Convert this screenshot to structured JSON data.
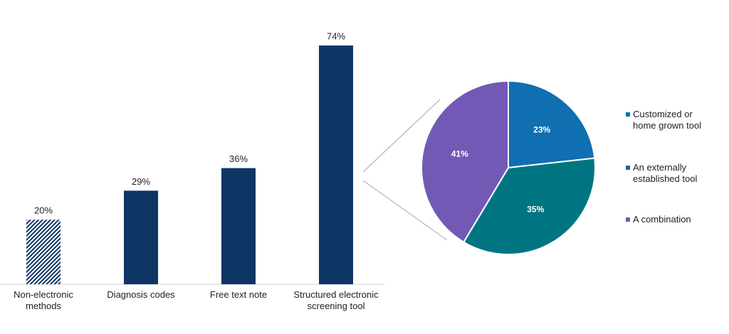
{
  "chart_data": [
    {
      "type": "bar",
      "categories": [
        "Non-electronic methods",
        "Diagnosis codes",
        "Free text note",
        "Structured electronic screening tool"
      ],
      "values": [
        20,
        29,
        36,
        74
      ],
      "value_labels": [
        "20%",
        "29%",
        "36%",
        "74%"
      ],
      "colors": [
        "#0f3564",
        "#0f3564",
        "#0f3564",
        "#0f3564"
      ],
      "hatched": [
        true,
        false,
        false,
        false
      ]
    },
    {
      "type": "pie",
      "labels": [
        "Customized or home grown tool",
        "An externally established tool",
        "A combination"
      ],
      "values": [
        23,
        35,
        41
      ],
      "value_labels": [
        "23%",
        "35%",
        "41%"
      ],
      "colors": [
        "#0f6fb0",
        "#007582",
        "#7259b5"
      ]
    }
  ]
}
